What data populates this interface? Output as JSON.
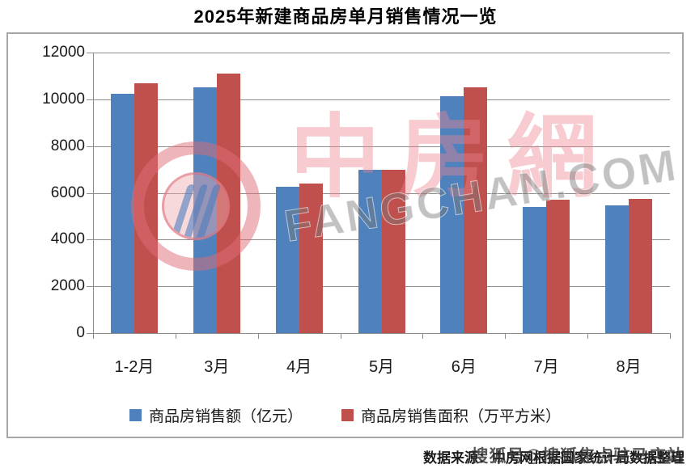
{
  "title": "2025年新建商品房单月销售情况一览",
  "chart_data": {
    "type": "bar",
    "title": "2025年新建商品房单月销售情况一览",
    "categories": [
      "1-2月",
      "3月",
      "4月",
      "5月",
      "6月",
      "7月",
      "8月"
    ],
    "series": [
      {
        "name": "商品房销售额（亿元）",
        "color": "#4F81BD",
        "values": [
          10250,
          10500,
          6250,
          7000,
          10150,
          5400,
          5450
        ]
      },
      {
        "name": "商品房销售面积（万平方米）",
        "color": "#C0504D",
        "values": [
          10700,
          11100,
          6400,
          7000,
          10500,
          5700,
          5750
        ]
      }
    ],
    "ylim": [
      0,
      12000
    ],
    "yticks": [
      12000,
      10000,
      8000,
      6000,
      4000,
      2000,
      0
    ],
    "xlabel": "",
    "ylabel": "",
    "grid": true,
    "legend_position": "bottom"
  },
  "watermark": {
    "cjk_text": "中房網",
    "domain_text": "FANGCHAN.COM",
    "overlay_text": "搜狐号@搜狐焦点驻马店站"
  },
  "footer": {
    "source": "数据来源：中房网根据国家统计局数据整理"
  },
  "colors": {
    "series_blue": "#4F81BD",
    "series_red": "#C0504D",
    "gridline": "#8c8c8c",
    "box_border": "#a6a6a6"
  }
}
